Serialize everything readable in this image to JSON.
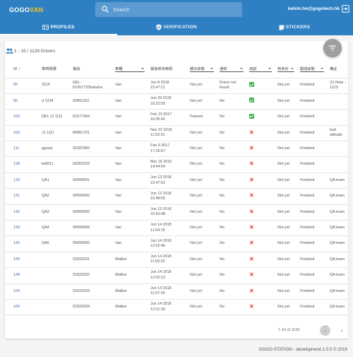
{
  "header": {
    "logo_prefix": "GOGO",
    "logo_accent": "VAN",
    "search_placeholder": "Search",
    "user_email": "kelvin.ho@gogotech.hk",
    "icons": {
      "search": "search-icon",
      "logout": "logout-icon"
    },
    "colors": {
      "bar": "#2f80c3",
      "logo_accent": "#f5c518"
    }
  },
  "tabs": [
    {
      "label": "PROFILES",
      "icon": "id-card-icon",
      "active": true
    },
    {
      "label": "VERIFICATION",
      "icon": "verified-shield-icon",
      "active": false
    },
    {
      "label": "STICKERS",
      "icon": "sticker-icon",
      "active": false
    }
  ],
  "summary": {
    "count_text": "1 - 15 / 1126 Drivers"
  },
  "table": {
    "columns": {
      "id": "ID",
      "license_plate": "車牌號碼",
      "phone": "電話",
      "vehicle_type": "車種",
      "last_modified": "最後修改時間",
      "displayed": "顯示狀態",
      "notified": "通知",
      "trained": "培訓",
      "id_check": "核身份",
      "verification_status": "驗證狀態",
      "remarks": "備註"
    },
    "sort_indicator": "↑",
    "rows": [
      {
        "id": "95",
        "plate": "3114",
        "phone": "DEL: 61057733hahaha",
        "type": "Van",
        "date": "Jun 8 2018",
        "time": "15:47:11",
        "displayed": "Not yet",
        "notified": "Driver not found",
        "trained": "ok",
        "id_check": "Not yet",
        "status": "Finished",
        "remarks": "(1) Note - 1123"
      },
      {
        "id": "96",
        "plate": "d 1234",
        "phone": "93891110",
        "type": "Van",
        "date": "Jun 29 2018",
        "time": "18:22:59",
        "displayed": "Not yet",
        "notified": "No",
        "trained": "ok",
        "id_check": "Not yet",
        "status": "Finished",
        "remarks": ""
      },
      {
        "id": "102",
        "plate": "DEL JJ 1111",
        "phone": "61577364",
        "type": "Van",
        "date": "Feb 13 2017",
        "time": "16:35:41",
        "displayed": "Passed",
        "notified": "No",
        "trained": "ok",
        "id_check": "Not yet",
        "status": "Finished",
        "remarks": ""
      },
      {
        "id": "103",
        "plate": "JJ 1111",
        "phone": "66861701",
        "type": "Van",
        "date": "Nov 22 2016",
        "time": "11:02:31",
        "displayed": "Not yet",
        "notified": "No",
        "trained": "x",
        "id_check": "Not yet",
        "status": "Finished",
        "remarks": "bad attitude"
      },
      {
        "id": "111",
        "plate": "ggsssj",
        "phone": "92287850",
        "type": "Van",
        "date": "Feb 9 2017",
        "time": "17:26:57",
        "displayed": "Not yet",
        "notified": "No",
        "trained": "x",
        "id_check": "Not yet",
        "status": "Finished",
        "remarks": ""
      },
      {
        "id": "138",
        "plate": "lw6011",
        "phone": "69262229",
        "type": "Van",
        "date": "Mar 16 2016",
        "time": "14:44:54",
        "displayed": "Not yet",
        "notified": "No",
        "trained": "x",
        "id_check": "Not yet",
        "status": "Finished",
        "remarks": ""
      },
      {
        "id": "139",
        "plate": "QA1",
        "phone": "99999991",
        "type": "Van",
        "date": "Jun 13 2018",
        "time": "15:47:52",
        "displayed": "Not yet",
        "notified": "No",
        "trained": "x",
        "id_check": "Not yet",
        "status": "Finished",
        "remarks": "QA team"
      },
      {
        "id": "141",
        "plate": "QA2",
        "phone": "99999992",
        "type": "Van",
        "date": "Jun 13 2018",
        "time": "15:48:50",
        "displayed": "Not yet",
        "notified": "No",
        "trained": "x",
        "id_check": "Not yet",
        "status": "Finished",
        "remarks": "QA team"
      },
      {
        "id": "142",
        "plate": "QA3",
        "phone": "99999993",
        "type": "Van",
        "date": "Jun 13 2018",
        "time": "15:50:48",
        "displayed": "Not yet",
        "notified": "No",
        "trained": "x",
        "id_check": "Not yet",
        "status": "Finished",
        "remarks": "QA team"
      },
      {
        "id": "143",
        "plate": "QA4",
        "phone": "99999994",
        "type": "Van",
        "date": "Jun 14 2018",
        "time": "11:54:15",
        "displayed": "Not yet",
        "notified": "No",
        "trained": "x",
        "id_check": "Not yet",
        "status": "Finished",
        "remarks": "QA team"
      },
      {
        "id": "145",
        "plate": "QA5",
        "phone": "99999995",
        "type": "Van",
        "date": "Jun 14 2018",
        "time": "12:02:46",
        "displayed": "Not yet",
        "notified": "No",
        "trained": "x",
        "id_check": "Not yet",
        "status": "Finished",
        "remarks": "QA team"
      },
      {
        "id": "146",
        "plate": "",
        "phone": "53333331",
        "type": "Walker",
        "date": "Jun 14 2018",
        "time": "11:55:32",
        "displayed": "Not yet",
        "notified": "No",
        "trained": "x",
        "id_check": "Not yet",
        "status": "Finished",
        "remarks": "QA team"
      },
      {
        "id": "148",
        "plate": "",
        "phone": "53333332",
        "type": "Walker",
        "date": "Jun 14 2018",
        "time": "12:02:13",
        "displayed": "Not yet",
        "notified": "No",
        "trained": "x",
        "id_check": "Not yet",
        "status": "Finished",
        "remarks": "QA team"
      },
      {
        "id": "154",
        "plate": "",
        "phone": "53333333",
        "type": "Walker",
        "date": "Jun 14 2018",
        "time": "11:57:34",
        "displayed": "Not yet",
        "notified": "No",
        "trained": "x",
        "id_check": "Not yet",
        "status": "Finished",
        "remarks": "QA team"
      },
      {
        "id": "184",
        "plate": "",
        "phone": "53333334",
        "type": "Walker",
        "date": "Jun 14 2018",
        "time": "12:01:35",
        "displayed": "Not yet",
        "notified": "No",
        "trained": "x",
        "id_check": "Not yet",
        "status": "Finished",
        "remarks": "QA team"
      }
    ],
    "status_icons": {
      "ok": "check-icon",
      "x": "cross-icon"
    },
    "colors": {
      "id_link": "#3b6fb6",
      "ok": "#39b54a",
      "x": "#e53935"
    }
  },
  "pagination": {
    "range_text": "1-15 of 1126",
    "prev": "‹",
    "next": "›"
  },
  "footer": {
    "text": "GOGO-STATION - development:1.0.0 © 2018"
  }
}
